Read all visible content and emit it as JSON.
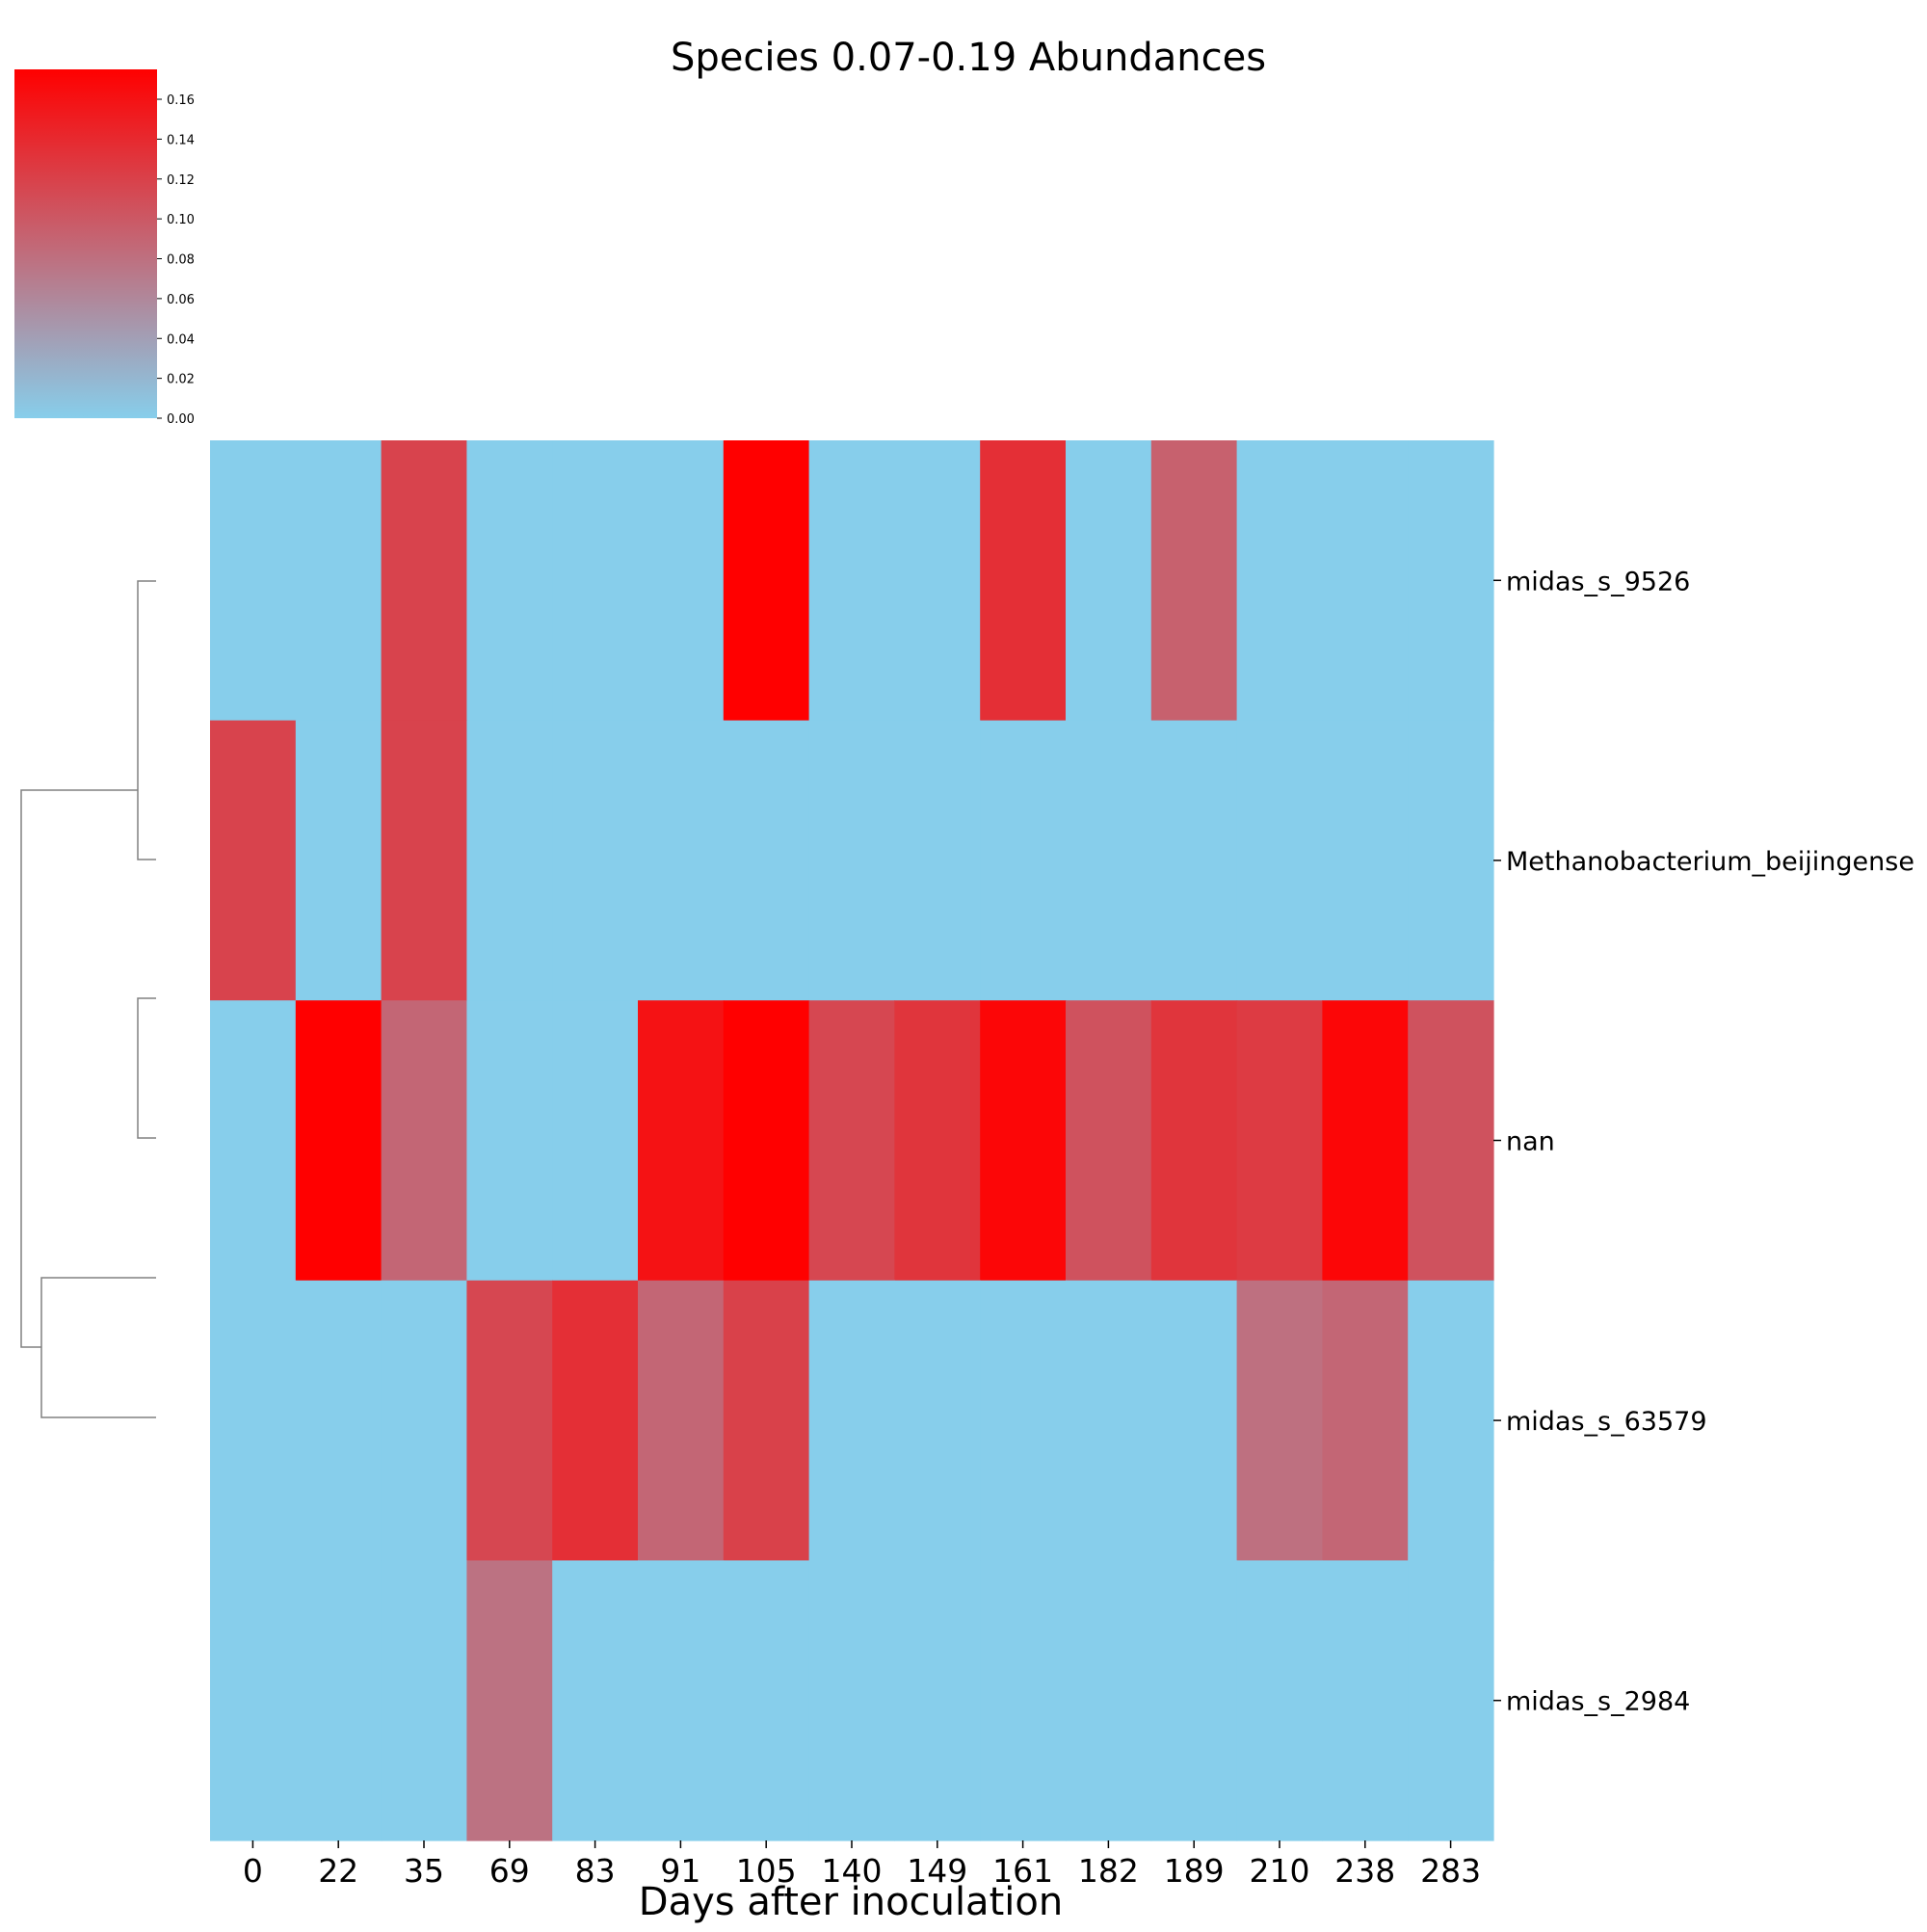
{
  "chart_data": {
    "type": "heatmap",
    "title": "Species 0.07-0.19 Abundances",
    "xlabel": "Days after inoculation",
    "ylabel": "",
    "x": [
      "0",
      "22",
      "35",
      "69",
      "83",
      "91",
      "105",
      "140",
      "149",
      "161",
      "182",
      "189",
      "210",
      "238",
      "283"
    ],
    "y": [
      "midas_s_9526",
      "Methanobacterium_beijingense",
      "nan",
      "midas_s_63579",
      "midas_s_2984"
    ],
    "values": [
      [
        0,
        0,
        0.118,
        0,
        0,
        0,
        0.175,
        0,
        0,
        0.135,
        0,
        0.093,
        0,
        0,
        0
      ],
      [
        0.118,
        0,
        0.118,
        0,
        0,
        0,
        0,
        0,
        0,
        0,
        0,
        0,
        0,
        0,
        0
      ],
      [
        0,
        0.175,
        0.088,
        0,
        0,
        0.16,
        0.175,
        0.115,
        0.13,
        0.17,
        0.105,
        0.13,
        0.125,
        0.17,
        0.105
      ],
      [
        0,
        0,
        0,
        0.115,
        0.135,
        0.088,
        0.12,
        0,
        0,
        0,
        0,
        0,
        0.08,
        0.088,
        0
      ],
      [
        0,
        0,
        0,
        0.078,
        0,
        0,
        0,
        0,
        0,
        0,
        0,
        0,
        0,
        0,
        0
      ]
    ],
    "colorbar": {
      "min": 0,
      "max": 0.175,
      "ticks": [
        "0.00",
        "0.02",
        "0.04",
        "0.06",
        "0.08",
        "0.10",
        "0.12",
        "0.14",
        "0.16"
      ],
      "colors": [
        "#87ceeb",
        "#ff0000"
      ]
    },
    "dendrogram": "rows",
    "grid": false
  }
}
